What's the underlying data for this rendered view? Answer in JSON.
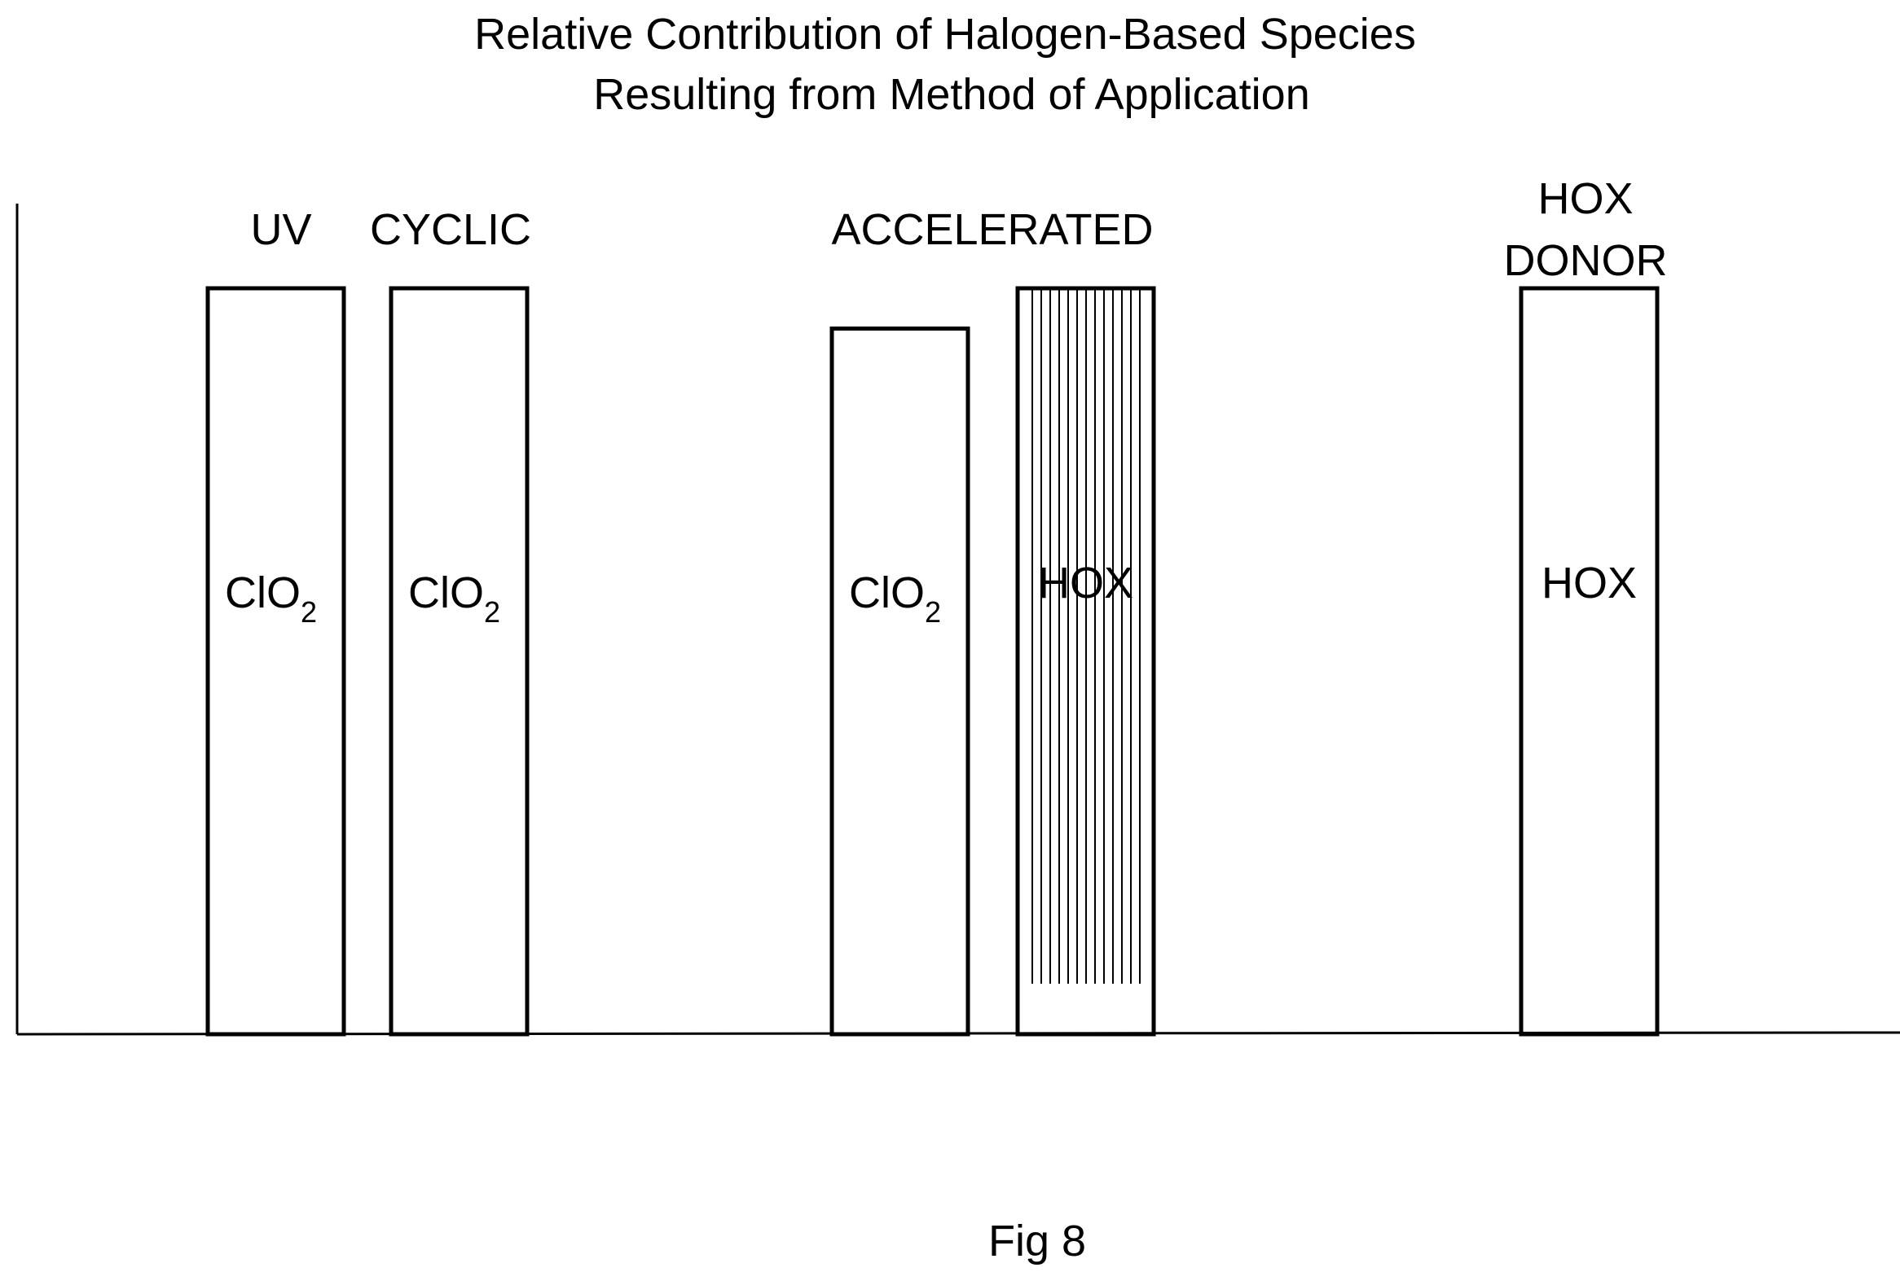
{
  "chart_data": {
    "type": "bar",
    "title": [
      "Relative Contribution of Halogen-Based Species",
      "Resulting from Method of Application"
    ],
    "xlabel": "",
    "ylabel": "",
    "ylim": [
      0,
      100
    ],
    "grid": false,
    "legend": "none",
    "groups": [
      {
        "label": [
          "UV"
        ],
        "bars": [
          {
            "label": "ClO",
            "subscript": "2",
            "value": 100,
            "pattern": "none"
          }
        ]
      },
      {
        "label": [
          "CYCLIC"
        ],
        "bars": [
          {
            "label": "ClO",
            "subscript": "2",
            "value": 100,
            "pattern": "none"
          }
        ]
      },
      {
        "label": [
          "ACCELERATED"
        ],
        "bars": [
          {
            "label": "ClO",
            "subscript": "2",
            "value": 94.6,
            "pattern": "none"
          },
          {
            "label": "HOX",
            "subscript": "",
            "value": 100,
            "pattern": "vertical-hatch"
          }
        ]
      },
      {
        "label": [
          "HOX",
          "DONOR"
        ],
        "bars": [
          {
            "label": "HOX",
            "subscript": "",
            "value": 100,
            "pattern": "none"
          }
        ]
      }
    ]
  },
  "caption": "Fig 8",
  "colors": {
    "stroke": "#000000",
    "background": "#ffffff"
  }
}
